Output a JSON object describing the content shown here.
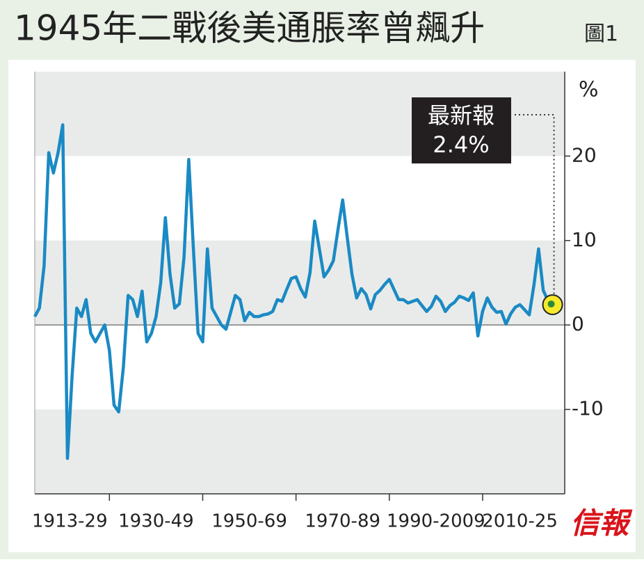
{
  "chart_data": {
    "type": "line",
    "title": "1945年二戰後美通脹率曾飆升",
    "figure_label": "圖1",
    "y_unit": "%",
    "source": "信報",
    "annotation": {
      "title": "最新報",
      "label": "2.4%"
    },
    "x_periods": [
      {
        "label": "1913-29",
        "start": 1913,
        "end": 1930
      },
      {
        "label": "1930-49",
        "start": 1930,
        "end": 1950
      },
      {
        "label": "1950-69",
        "start": 1950,
        "end": 1970
      },
      {
        "label": "1970-89",
        "start": 1970,
        "end": 1990
      },
      {
        "label": "1990-2009",
        "start": 1990,
        "end": 2010
      },
      {
        "label": "2010-25",
        "start": 2010,
        "end": 2026
      }
    ],
    "x": [
      1914,
      1915,
      1916,
      1917,
      1918,
      1919,
      1920,
      1921,
      1922,
      1923,
      1924,
      1925,
      1926,
      1927,
      1928,
      1929,
      1930,
      1931,
      1932,
      1933,
      1934,
      1935,
      1936,
      1937,
      1938,
      1939,
      1940,
      1941,
      1942,
      1943,
      1944,
      1945,
      1946,
      1947,
      1948,
      1949,
      1950,
      1951,
      1952,
      1953,
      1954,
      1955,
      1956,
      1957,
      1958,
      1959,
      1960,
      1961,
      1962,
      1963,
      1964,
      1965,
      1966,
      1967,
      1968,
      1969,
      1970,
      1971,
      1972,
      1973,
      1974,
      1975,
      1976,
      1977,
      1978,
      1979,
      1980,
      1981,
      1982,
      1983,
      1984,
      1985,
      1986,
      1987,
      1988,
      1989,
      1990,
      1991,
      1992,
      1993,
      1994,
      1995,
      1996,
      1997,
      1998,
      1999,
      2000,
      2001,
      2002,
      2003,
      2004,
      2005,
      2006,
      2007,
      2008,
      2009,
      2010,
      2011,
      2012,
      2013,
      2014,
      2015,
      2016,
      2017,
      2018,
      2019,
      2020,
      2021,
      2022,
      2023,
      2024,
      2025
    ],
    "series": [
      {
        "name": "通脹率",
        "color": "#1a8ac4",
        "values": [
          1,
          2,
          7,
          20.4,
          18,
          20.4,
          23.7,
          -15.8,
          -6,
          2,
          1,
          3,
          -1,
          -2,
          -1,
          0,
          -3,
          -9.5,
          -10.3,
          -5,
          3.5,
          3,
          1,
          4,
          -2,
          -1,
          1,
          5,
          12.7,
          6,
          2,
          2.5,
          8,
          19.6,
          9,
          -1,
          -2,
          9,
          2,
          1,
          0,
          -0.5,
          1.5,
          3.5,
          3,
          0.5,
          1.5,
          1,
          1,
          1.2,
          1.3,
          1.6,
          3,
          2.8,
          4.2,
          5.5,
          5.7,
          4.3,
          3.3,
          6.2,
          12.3,
          9,
          5.7,
          6.5,
          7.6,
          11.3,
          14.8,
          10.3,
          6,
          3.2,
          4.3,
          3.6,
          1.9,
          3.6,
          4.1,
          4.8,
          5.4,
          4.2,
          3,
          3,
          2.6,
          2.8,
          3,
          2.3,
          1.6,
          2.2,
          3.4,
          2.8,
          1.6,
          2.3,
          2.7,
          3.4,
          3.2,
          2.9,
          3.8,
          -1.3,
          1.6,
          3.2,
          2.1,
          1.5,
          1.6,
          0.1,
          1.3,
          2.1,
          2.4,
          1.8,
          1.2,
          4.7,
          9,
          4.1,
          2.9,
          2.4
        ]
      }
    ],
    "xlim": [
      1914,
      2027.6
    ],
    "ylim": [
      -20,
      30
    ],
    "yticks": [
      -10,
      0,
      10,
      20
    ],
    "bands": true
  }
}
